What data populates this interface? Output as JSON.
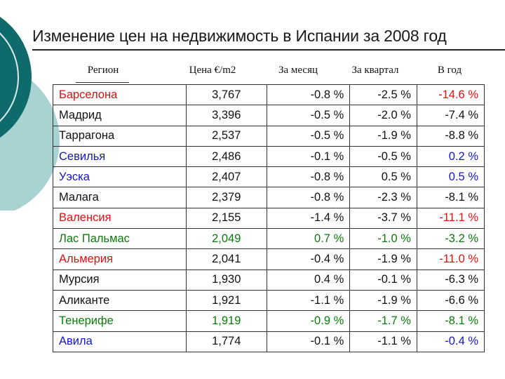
{
  "title": "Изменение цен на недвижимость в Испании за 2008 год",
  "headers": {
    "region": "Регион",
    "price": "Цена €/m2",
    "month": "За месяц",
    "quarter": "За квартал",
    "year": "В год"
  },
  "colors": {
    "black": "#111111",
    "red": "#e01010",
    "blue": "#1515c8",
    "green": "#0a7a0a",
    "deco_teal_dark": "#0f6b6b",
    "deco_teal_light": "#a9d2d2"
  },
  "rows": [
    {
      "region": "Барселона",
      "price": "3,767",
      "month": "-0.8 %",
      "quarter": "-2.5 %",
      "year": "-14.6 %",
      "region_color": "red",
      "price_color": "black",
      "month_color": "black",
      "quarter_color": "black",
      "year_color": "red"
    },
    {
      "region": "Мадрид",
      "price": "3,396",
      "month": "-0.5 %",
      "quarter": "-2.0 %",
      "year": "-7.4 %",
      "region_color": "black",
      "price_color": "black",
      "month_color": "black",
      "quarter_color": "black",
      "year_color": "black"
    },
    {
      "region": "Таррагона",
      "price": "2,537",
      "month": "-0.5 %",
      "quarter": "-1.9 %",
      "year": "-8.8 %",
      "region_color": "black",
      "price_color": "black",
      "month_color": "black",
      "quarter_color": "black",
      "year_color": "black"
    },
    {
      "region": "Севилья",
      "price": "2,486",
      "month": "-0.1 %",
      "quarter": "-0.5 %",
      "year": "0.2 %",
      "region_color": "blue",
      "price_color": "black",
      "month_color": "black",
      "quarter_color": "black",
      "year_color": "blue"
    },
    {
      "region": "Уэска",
      "price": "2,407",
      "month": "-0.8 %",
      "quarter": "0.5 %",
      "year": "0.5 %",
      "region_color": "blue",
      "price_color": "black",
      "month_color": "black",
      "quarter_color": "black",
      "year_color": "blue"
    },
    {
      "region": "Малага",
      "price": "2,379",
      "month": "-0.8 %",
      "quarter": "-2.3 %",
      "year": "-8.1 %",
      "region_color": "black",
      "price_color": "black",
      "month_color": "black",
      "quarter_color": "black",
      "year_color": "black"
    },
    {
      "region": "Валенсия",
      "price": "2,155",
      "month": "-1.4 %",
      "quarter": "-3.7 %",
      "year": "-11.1 %",
      "region_color": "red",
      "price_color": "black",
      "month_color": "black",
      "quarter_color": "black",
      "year_color": "red"
    },
    {
      "region": "Лас Пальмас",
      "price": "2,049",
      "month": "0.7 %",
      "quarter": "-1.0 %",
      "year": "-3.2 %",
      "region_color": "green",
      "price_color": "green",
      "month_color": "green",
      "quarter_color": "green",
      "year_color": "green"
    },
    {
      "region": "Альмерия",
      "price": "2,041",
      "month": "-0.4 %",
      "quarter": "-1.9 %",
      "year": "-11.0 %",
      "region_color": "red",
      "price_color": "black",
      "month_color": "black",
      "quarter_color": "black",
      "year_color": "red"
    },
    {
      "region": "Мурсия",
      "price": "1,930",
      "month": "0.4 %",
      "quarter": "-0.1 %",
      "year": "-6.3 %",
      "region_color": "black",
      "price_color": "black",
      "month_color": "black",
      "quarter_color": "black",
      "year_color": "black"
    },
    {
      "region": "Аликанте",
      "price": "1,921",
      "month": "-1.1 %",
      "quarter": "-1.9 %",
      "year": "-6.6 %",
      "region_color": "black",
      "price_color": "black",
      "month_color": "black",
      "quarter_color": "black",
      "year_color": "black"
    },
    {
      "region": "Тенерифе",
      "price": "1,919",
      "month": "-0.9 %",
      "quarter": "-1.7 %",
      "year": "-8.1 %",
      "region_color": "green",
      "price_color": "green",
      "month_color": "green",
      "quarter_color": "green",
      "year_color": "green"
    },
    {
      "region": "Авила",
      "price": "1,774",
      "month": "-0.1 %",
      "quarter": "-1.1 %",
      "year": "-0.4 %",
      "region_color": "blue",
      "price_color": "black",
      "month_color": "black",
      "quarter_color": "black",
      "year_color": "blue"
    }
  ]
}
